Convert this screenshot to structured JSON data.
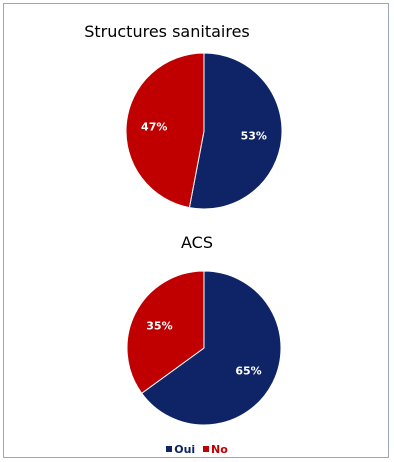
{
  "colors": {
    "oui": "#0f2466",
    "no": "#c00000"
  },
  "chart_data": [
    {
      "type": "pie",
      "title": "Structures sanitaires",
      "slices": [
        {
          "label": "Oui",
          "value": 53,
          "text": "53%"
        },
        {
          "label": "No",
          "value": 47,
          "text": "47%"
        }
      ]
    },
    {
      "type": "pie",
      "title": "ACS",
      "slices": [
        {
          "label": "Oui",
          "value": 65,
          "text": "65%"
        },
        {
          "label": "No",
          "value": 35,
          "text": "35%"
        }
      ]
    }
  ],
  "legend": {
    "items": [
      "Oui",
      "No"
    ]
  }
}
